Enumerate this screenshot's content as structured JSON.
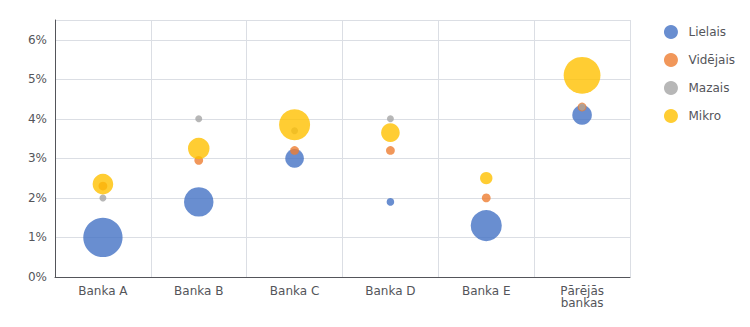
{
  "chart_data": {
    "type": "scatter",
    "categories": [
      "Banka A",
      "Banka B",
      "Banka C",
      "Banka D",
      "Banka E",
      "Pārējās\nbankas"
    ],
    "series": [
      {
        "name": "Lielais",
        "color": "#4472C4",
        "values": [
          0.01,
          0.019,
          0.03,
          0.019,
          0.013,
          0.041
        ],
        "sizes": [
          800,
          450,
          180,
          30,
          500,
          200
        ]
      },
      {
        "name": "Vidējais",
        "color": "#ED7D31",
        "values": [
          0.023,
          0.0295,
          0.032,
          0.032,
          0.02,
          0.043
        ],
        "sizes": [
          40,
          40,
          40,
          40,
          40,
          40
        ]
      },
      {
        "name": "Mazais",
        "color": "#A5A5A5",
        "values": [
          0.02,
          0.04,
          0.037,
          0.04,
          null,
          0.043
        ],
        "sizes": [
          25,
          25,
          25,
          25,
          null,
          25
        ]
      },
      {
        "name": "Mikro",
        "color": "#FFC000",
        "values": [
          0.0235,
          0.0325,
          0.0385,
          0.0365,
          0.025,
          0.051
        ],
        "sizes": [
          220,
          240,
          500,
          180,
          80,
          700
        ]
      }
    ],
    "ylim": [
      0.0,
      0.065
    ],
    "yticks": [
      {
        "value": 0.0,
        "label": "0%"
      },
      {
        "value": 0.01,
        "label": "1%"
      },
      {
        "value": 0.02,
        "label": "2%"
      },
      {
        "value": 0.03,
        "label": "3%"
      },
      {
        "value": 0.04,
        "label": "4%"
      },
      {
        "value": 0.05,
        "label": "5%"
      },
      {
        "value": 0.06,
        "label": "6%"
      }
    ],
    "grid": true,
    "legend": "upper right"
  }
}
